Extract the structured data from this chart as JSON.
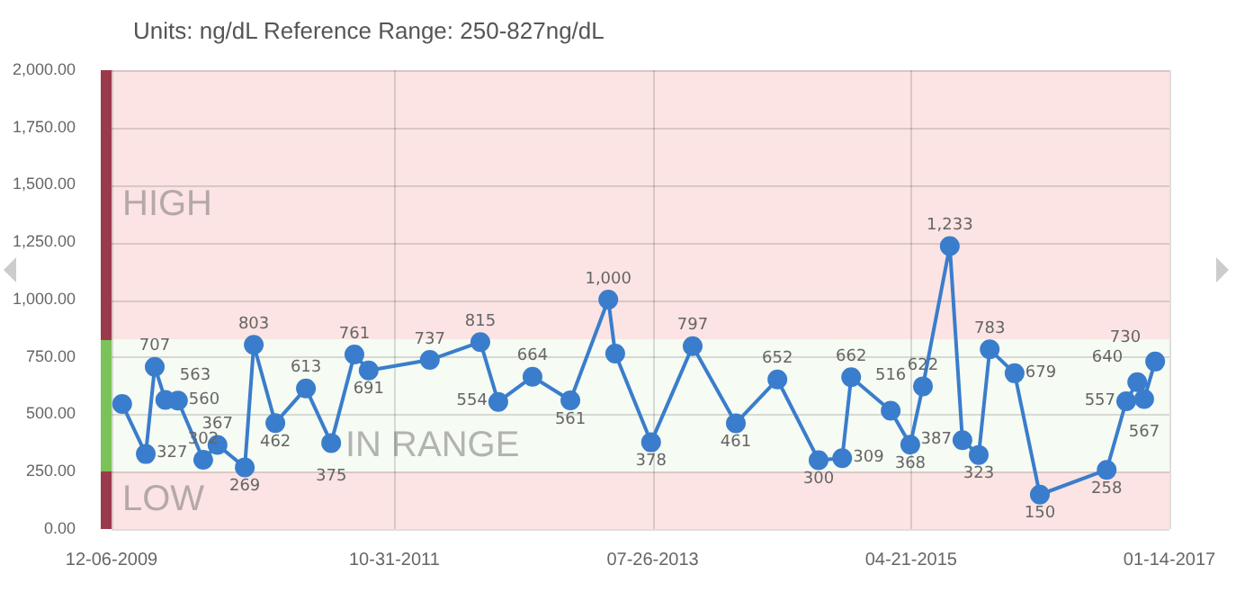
{
  "chart_data": {
    "type": "line",
    "title": "Units: ng/dL Reference Range: 250-827ng/dL",
    "x": [
      "2010-01-01",
      "2010-02-28",
      "2010-03-22",
      "2010-04-17",
      "2010-05-18",
      "2010-07-19",
      "2010-08-23",
      "2010-10-29",
      "2010-11-20",
      "2011-01-12",
      "2011-03-28",
      "2011-05-29",
      "2011-07-25",
      "2011-08-29",
      "2012-01-26",
      "2012-05-29",
      "2012-07-12",
      "2012-10-04",
      "2013-01-05",
      "2013-04-08",
      "2013-04-25",
      "2013-07-22",
      "2013-11-01",
      "2014-02-15",
      "2014-05-28",
      "2014-09-06",
      "2014-11-03",
      "2014-11-25",
      "2015-03-02",
      "2015-04-19",
      "2015-05-20",
      "2015-07-25",
      "2015-08-25",
      "2015-10-04",
      "2015-10-31",
      "2015-12-31",
      "2016-03-02",
      "2016-08-13",
      "2016-09-30",
      "2016-10-27",
      "2016-11-13",
      "2016-12-10"
    ],
    "series": [
      {
        "color": "#3a7dcc",
        "values": [
          545,
          327,
          707,
          563,
          560,
          302,
          367,
          269,
          803,
          462,
          613,
          375,
          761,
          691,
          737,
          815,
          554,
          664,
          561,
          1000,
          765,
          378,
          797,
          461,
          652,
          300,
          309,
          662,
          516,
          368,
          622,
          1233,
          387,
          323,
          783,
          679,
          150,
          258,
          557,
          640,
          567,
          730
        ],
        "value_labels": [
          null,
          "327",
          "707",
          "563",
          "560",
          "302",
          "367",
          "269",
          "803",
          "462",
          "613",
          "375",
          "761",
          "691",
          "737",
          "815",
          "554",
          "664",
          "561",
          "1,000",
          null,
          "378",
          "797",
          "461",
          "652",
          "300",
          "309",
          "662",
          "516",
          "368",
          "622",
          "1,233",
          "387",
          "323",
          "783",
          "679",
          "150",
          "258",
          "557",
          "640",
          "567",
          "730"
        ]
      }
    ],
    "xlim": [
      "2009-12-06",
      "2017-01-14"
    ],
    "xticks": [
      {
        "value": "2009-12-06",
        "label": "12-06-2009"
      },
      {
        "value": "2011-10-31",
        "label": "10-31-2011"
      },
      {
        "value": "2013-07-26",
        "label": "07-26-2013"
      },
      {
        "value": "2015-04-21",
        "label": "04-21-2015"
      },
      {
        "value": "2017-01-14",
        "label": "01-14-2017"
      }
    ],
    "ylim": [
      0,
      2000
    ],
    "yticks": [
      {
        "value": 0,
        "label": "0.00"
      },
      {
        "value": 250,
        "label": "250.00"
      },
      {
        "value": 500,
        "label": "500.00"
      },
      {
        "value": 750,
        "label": "750.00"
      },
      {
        "value": 1000,
        "label": "1,000.00"
      },
      {
        "value": 1250,
        "label": "1,250.00"
      },
      {
        "value": 1500,
        "label": "1,500.00"
      },
      {
        "value": 1750,
        "label": "1,750.00"
      },
      {
        "value": 2000,
        "label": "2,000.00"
      }
    ],
    "bands": [
      {
        "axis": "y",
        "from": 827,
        "to": 2000,
        "label": "HIGH",
        "color": "#fbe4e3"
      },
      {
        "axis": "y",
        "from": 250,
        "to": 827,
        "label": "IN RANGE",
        "color": "#f6fbf3"
      },
      {
        "axis": "y",
        "from": 0,
        "to": 250,
        "label": "LOW",
        "color": "#fbe4e3"
      }
    ],
    "grid": true,
    "marker": "circle",
    "line_style": "solid",
    "legend": false
  }
}
